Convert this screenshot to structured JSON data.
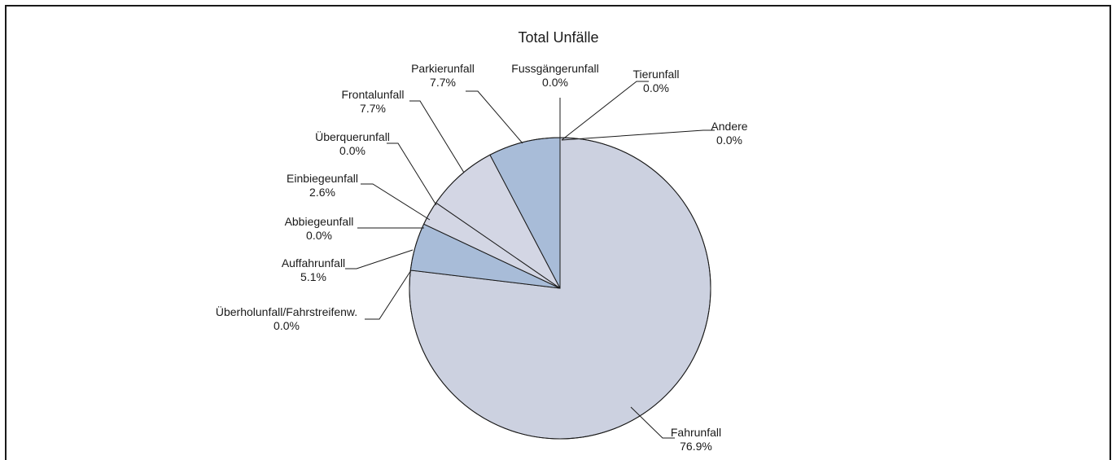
{
  "chart_data": {
    "type": "pie",
    "title": "Total Unfälle",
    "start": "12 o'clock",
    "direction": "clockwise",
    "slices": [
      {
        "label": "Tierunfall",
        "pct_text": "0.0%",
        "value": 0.0,
        "color": "#c9d0e0"
      },
      {
        "label": "Andere",
        "pct_text": "0.0%",
        "value": 0.0,
        "color": "#c9d0e0"
      },
      {
        "label": "Fahrunfall",
        "pct_text": "76.9%",
        "value": 76.9,
        "color": "#ccd1e0"
      },
      {
        "label": "Überholunfall/Fahrstreifenw.",
        "pct_text": "0.0%",
        "value": 0.0,
        "color": "#ccd1e0"
      },
      {
        "label": "Auffahrunfall",
        "pct_text": "5.1%",
        "value": 5.1,
        "color": "#a8bcd8"
      },
      {
        "label": "Abbiegeunfall",
        "pct_text": "0.0%",
        "value": 0.0,
        "color": "#ccd1e0"
      },
      {
        "label": "Einbiegeunfall",
        "pct_text": "2.6%",
        "value": 2.6,
        "color": "#d3d6e4"
      },
      {
        "label": "Überquerunfall",
        "pct_text": "0.0%",
        "value": 0.0,
        "color": "#d3d6e4"
      },
      {
        "label": "Frontalunfall",
        "pct_text": "7.7%",
        "value": 7.7,
        "color": "#d3d6e4"
      },
      {
        "label": "Parkierunfall",
        "pct_text": "7.7%",
        "value": 7.7,
        "color": "#a8bcd8"
      },
      {
        "label": "Fussgängerunfall",
        "pct_text": "0.0%",
        "value": 0.0,
        "color": "#a8bcd8"
      }
    ]
  }
}
